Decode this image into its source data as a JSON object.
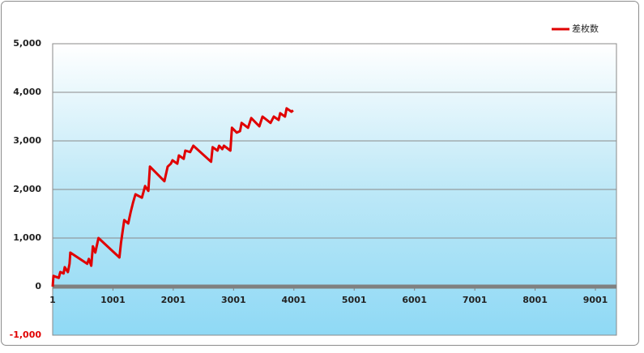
{
  "chart_data": {
    "type": "line",
    "x": [
      1,
      14,
      102,
      128,
      182,
      201,
      254,
      281,
      294,
      574,
      601,
      641,
      668,
      708,
      761,
      1108,
      1134,
      1188,
      1254,
      1294,
      1334,
      1374,
      1481,
      1534,
      1588,
      1614,
      1854,
      1908,
      1961,
      1988,
      2068,
      2094,
      2174,
      2201,
      2281,
      2334,
      2628,
      2654,
      2734,
      2761,
      2814,
      2841,
      2948,
      2974,
      3054,
      3108,
      3134,
      3241,
      3294,
      3428,
      3481,
      3614,
      3668,
      3748,
      3774,
      3854,
      3881,
      3961,
      3988
    ],
    "series": [
      {
        "name": "差枚数",
        "color": "#e00000",
        "values": [
          0,
          220,
          180,
          300,
          270,
          400,
          300,
          470,
          700,
          470,
          570,
          430,
          830,
          700,
          1000,
          600,
          900,
          1370,
          1300,
          1530,
          1730,
          1900,
          1830,
          2070,
          1970,
          2470,
          2170,
          2470,
          2530,
          2600,
          2530,
          2700,
          2630,
          2800,
          2770,
          2900,
          2570,
          2870,
          2800,
          2900,
          2830,
          2900,
          2800,
          3270,
          3170,
          3200,
          3370,
          3270,
          3470,
          3300,
          3500,
          3370,
          3500,
          3430,
          3570,
          3500,
          3670,
          3600,
          3630
        ]
      }
    ],
    "xlim": [
      1,
      9350
    ],
    "xticks": [
      1,
      1001,
      2001,
      3001,
      4001,
      5001,
      6001,
      7001,
      8001,
      9001
    ],
    "ylim": [
      -1000,
      5000
    ],
    "yticks": [
      {
        "value": -1000,
        "label": "-1,000"
      },
      0,
      {
        "value": 1000,
        "label": "1,000"
      },
      {
        "value": 2000,
        "label": "2,000"
      },
      {
        "value": 3000,
        "label": "3,000"
      },
      {
        "value": 4000,
        "label": "4,000"
      },
      {
        "value": 5000,
        "label": "5,000"
      }
    ],
    "grid": true,
    "legend": "top-right"
  }
}
